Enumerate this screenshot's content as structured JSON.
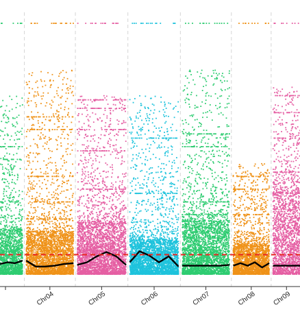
{
  "chart_data": {
    "type": "scatter",
    "subtype": "manhattan",
    "title": "",
    "xlabel": "",
    "ylabel": "",
    "ylim": [
      0,
      30
    ],
    "grid": false,
    "legend": "none",
    "chromosome_separators": "dashed-vertical",
    "threshold": {
      "value": 2.3,
      "style": "dashed",
      "color": "#e8251f"
    },
    "chromosomes": [
      {
        "label": "",
        "color": "#2ecc71",
        "partial": "right-edge-only",
        "x_range": [
          0,
          3.0
        ],
        "dense_band": [
          0,
          5.2
        ],
        "sparse_max": 21,
        "cap": 29.5,
        "stripes": [
          29.5,
          15.0,
          13.5,
          8.5
        ],
        "trend": [
          1.2,
          1.4,
          1.3,
          1.6
        ]
      },
      {
        "label": "Chr04",
        "color": "#ef9218",
        "x_range": [
          3.5,
          9.8
        ],
        "dense_band": [
          0,
          5.0
        ],
        "sparse_max": 24,
        "cap": 29.5,
        "stripes": [
          29.5,
          18.5,
          17.0,
          11.5,
          8.5,
          6.5
        ],
        "trend": [
          1.6,
          0.9,
          0.9,
          1.0,
          1.2,
          1.3
        ]
      },
      {
        "label": "Chr05",
        "color": "#e55fa3",
        "x_range": [
          10.3,
          16.8
        ],
        "dense_band": [
          0,
          6.0
        ],
        "sparse_max": 21,
        "cap": 29.5,
        "stripes": [
          29.5,
          20.5,
          19.5,
          17.0,
          14.5,
          10.0
        ],
        "trend": [
          1.1,
          1.4,
          2.1,
          2.6,
          2.1,
          1.1
        ]
      },
      {
        "label": "Chr06",
        "color": "#1ec3dc",
        "x_range": [
          17.3,
          23.8
        ],
        "dense_band": [
          0,
          4.0
        ],
        "sparse_max": 21,
        "cap": 29.5,
        "stripes": [
          29.5,
          16.0,
          9.5
        ],
        "trend": [
          1.4,
          2.7,
          2.2,
          1.4,
          2.1,
          0.9
        ]
      },
      {
        "label": "Chr07",
        "color": "#2ecc71",
        "x_range": [
          24.3,
          30.6
        ],
        "dense_band": [
          0,
          6.2
        ],
        "sparse_max": 24,
        "cap": 29.5,
        "stripes": [
          29.5,
          16.5,
          15.0,
          8.5,
          7.0
        ],
        "trend": [
          1.0,
          1.0,
          1.0,
          1.0,
          1.0,
          1.1
        ]
      },
      {
        "label": "Chr08",
        "color": "#ef9218",
        "x_range": [
          31.1,
          35.9
        ],
        "dense_band": [
          0,
          3.5
        ],
        "sparse_max": 13,
        "cap": 29.5,
        "stripes": [
          29.5,
          11.5,
          10.0,
          7.0
        ],
        "trend": [
          1.0,
          1.3,
          1.0,
          1.4,
          0.8,
          1.3
        ]
      },
      {
        "label": "Chr09",
        "color": "#e55fa3",
        "x_range": [
          36.4,
          40.0
        ],
        "dense_band": [
          0,
          9.5
        ],
        "sparse_max": 22,
        "cap": 29.5,
        "stripes": [
          29.5,
          21.0,
          19.0,
          16.0,
          12.0
        ],
        "trend": [
          1.0,
          1.0,
          1.0,
          1.0
        ]
      }
    ]
  }
}
